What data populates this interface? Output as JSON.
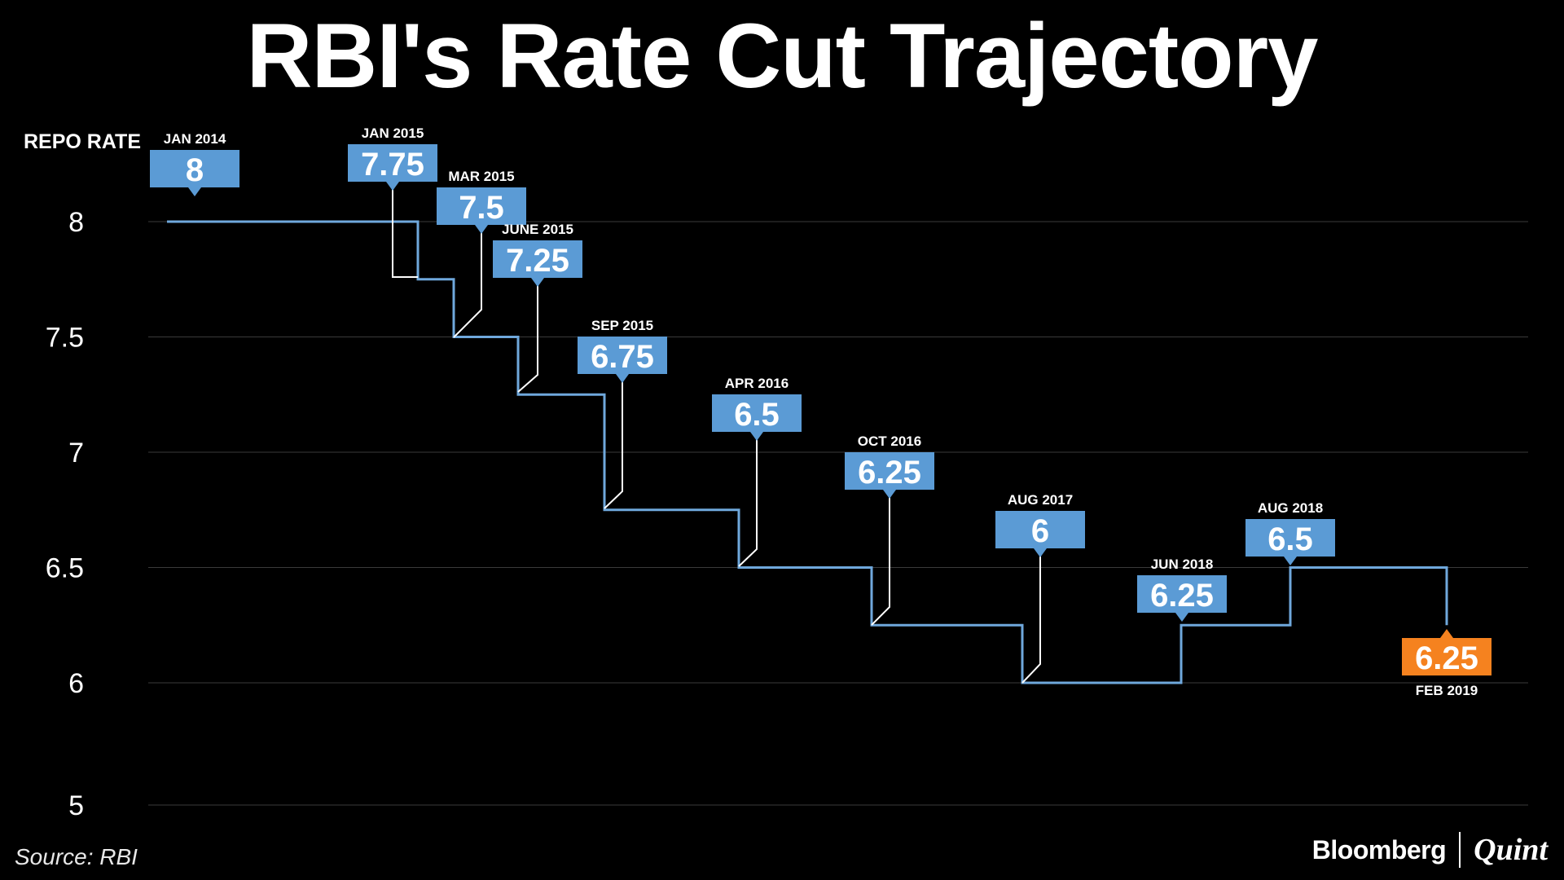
{
  "chart_data": {
    "type": "line",
    "title": "RBI's Rate Cut Trajectory",
    "ylabel": "REPO RATE",
    "yticks": [
      "8",
      "7.5",
      "7",
      "6.5",
      "6",
      "5"
    ],
    "grid": true,
    "highlight_color": "#f5821f",
    "box_color": "#5b9bd5",
    "line_color": "#6fa8dc",
    "points": [
      {
        "date": "JAN 2014",
        "value": 8,
        "label": "8"
      },
      {
        "date": "JAN 2015",
        "value": 7.75,
        "label": "7.75"
      },
      {
        "date": "MAR 2015",
        "value": 7.5,
        "label": "7.5"
      },
      {
        "date": "JUNE 2015",
        "value": 7.25,
        "label": "7.25"
      },
      {
        "date": "SEP 2015",
        "value": 6.75,
        "label": "6.75"
      },
      {
        "date": "APR 2016",
        "value": 6.5,
        "label": "6.5"
      },
      {
        "date": "OCT 2016",
        "value": 6.25,
        "label": "6.25"
      },
      {
        "date": "AUG 2017",
        "value": 6,
        "label": "6"
      },
      {
        "date": "JUN 2018",
        "value": 6.25,
        "label": "6.25"
      },
      {
        "date": "AUG 2018",
        "value": 6.5,
        "label": "6.5"
      },
      {
        "date": "FEB 2019",
        "value": 6.25,
        "label": "6.25"
      }
    ]
  },
  "footer": {
    "source": "Source: RBI",
    "brand_left": "Bloomberg",
    "brand_right": "Quint"
  }
}
